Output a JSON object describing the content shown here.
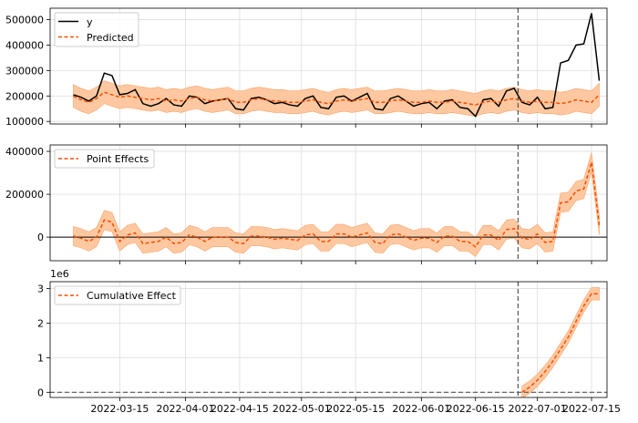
{
  "colors": {
    "observed": "#000000",
    "predicted": "#ff4d00",
    "band": "#ffc8a0",
    "band_edge": "#f6a56a",
    "grid": "#dddddd",
    "intervention": "#555555"
  },
  "x_axis": {
    "tick_labels": [
      "2022-03-15",
      "2022-04-01",
      "2022-04-15",
      "2022-05-01",
      "2022-05-15",
      "2022-06-01",
      "2022-06-15",
      "2022-07-01",
      "2022-07-15"
    ],
    "tick_days": [
      14,
      31,
      45,
      61,
      75,
      92,
      106,
      122,
      136
    ],
    "start_date": "2022-03-01",
    "xlim_days": [
      -4,
      140
    ],
    "intervention_day": 117
  },
  "chart_data": [
    {
      "type": "line",
      "panel": "original",
      "yticks": [
        "100000",
        "200000",
        "300000",
        "400000",
        "500000"
      ],
      "ytick_values": [
        100000,
        200000,
        300000,
        400000,
        500000
      ],
      "ylim": [
        90000,
        545000
      ],
      "legend": [
        "y",
        "Predicted"
      ],
      "legend_position": "top-left",
      "series": [
        {
          "name": "y",
          "x": [
            2,
            4,
            6,
            8,
            10,
            12,
            14,
            16,
            18,
            20,
            22,
            24,
            26,
            28,
            30,
            32,
            34,
            36,
            38,
            40,
            42,
            44,
            46,
            48,
            50,
            52,
            54,
            56,
            58,
            60,
            62,
            64,
            66,
            68,
            70,
            72,
            74,
            76,
            78,
            80,
            82,
            84,
            86,
            88,
            90,
            92,
            94,
            96,
            98,
            100,
            102,
            104,
            106,
            108,
            110,
            112,
            114,
            116,
            118,
            120,
            122,
            124,
            126,
            128,
            130,
            132,
            134,
            136,
            138
          ],
          "values": [
            205000,
            195000,
            180000,
            200000,
            290000,
            280000,
            205000,
            210000,
            225000,
            170000,
            160000,
            170000,
            190000,
            165000,
            160000,
            200000,
            195000,
            170000,
            180000,
            185000,
            190000,
            150000,
            145000,
            190000,
            195000,
            185000,
            170000,
            175000,
            165000,
            160000,
            190000,
            200000,
            155000,
            150000,
            195000,
            200000,
            180000,
            195000,
            210000,
            150000,
            145000,
            190000,
            200000,
            180000,
            160000,
            170000,
            175000,
            150000,
            180000,
            185000,
            155000,
            150000,
            120000,
            185000,
            190000,
            160000,
            220000,
            230000,
            175000,
            165000,
            195000,
            150000,
            155000,
            330000,
            340000,
            400000,
            405000,
            525000,
            260000
          ]
        },
        {
          "name": "Predicted",
          "x": [
            2,
            4,
            6,
            8,
            10,
            12,
            14,
            16,
            18,
            20,
            22,
            24,
            26,
            28,
            30,
            32,
            34,
            36,
            38,
            40,
            42,
            44,
            46,
            48,
            50,
            52,
            54,
            56,
            58,
            60,
            62,
            64,
            66,
            68,
            70,
            72,
            74,
            76,
            78,
            80,
            82,
            84,
            86,
            88,
            90,
            92,
            94,
            96,
            98,
            100,
            102,
            104,
            106,
            108,
            110,
            112,
            114,
            116,
            118,
            120,
            122,
            124,
            126,
            128,
            130,
            132,
            134,
            136,
            138
          ],
          "values": [
            200000,
            185000,
            175000,
            190000,
            215000,
            205000,
            195000,
            200000,
            195000,
            190000,
            185000,
            190000,
            180000,
            185000,
            180000,
            190000,
            195000,
            185000,
            180000,
            185000,
            190000,
            175000,
            175000,
            185000,
            190000,
            185000,
            180000,
            180000,
            175000,
            175000,
            180000,
            185000,
            175000,
            170000,
            180000,
            185000,
            180000,
            185000,
            190000,
            175000,
            175000,
            180000,
            185000,
            180000,
            175000,
            175000,
            180000,
            175000,
            175000,
            180000,
            175000,
            170000,
            165000,
            175000,
            180000,
            175000,
            185000,
            190000,
            180000,
            175000,
            180000,
            175000,
            175000,
            170000,
            175000,
            185000,
            180000,
            175000,
            205000
          ],
          "band_halfwidth": 45000
        }
      ]
    },
    {
      "type": "line",
      "panel": "pointwise",
      "yticks": [
        "0",
        "200000",
        "400000"
      ],
      "ytick_values": [
        0,
        200000,
        400000
      ],
      "ylim": [
        -110000,
        430000
      ],
      "zero_line": 0,
      "legend": [
        "Point Effects"
      ],
      "legend_position": "top-left",
      "series": [
        {
          "name": "Point Effects",
          "x": [
            2,
            4,
            6,
            8,
            10,
            12,
            14,
            16,
            18,
            20,
            22,
            24,
            26,
            28,
            30,
            32,
            34,
            36,
            38,
            40,
            42,
            44,
            46,
            48,
            50,
            52,
            54,
            56,
            58,
            60,
            62,
            64,
            66,
            68,
            70,
            72,
            74,
            76,
            78,
            80,
            82,
            84,
            86,
            88,
            90,
            92,
            94,
            96,
            98,
            100,
            102,
            104,
            106,
            108,
            110,
            112,
            114,
            116,
            118,
            120,
            122,
            124,
            126,
            128,
            130,
            132,
            134,
            136,
            138
          ],
          "values": [
            5000,
            -5000,
            -20000,
            0,
            80000,
            70000,
            -20000,
            10000,
            20000,
            -30000,
            -25000,
            -20000,
            0,
            -30000,
            -25000,
            10000,
            0,
            -20000,
            0,
            0,
            0,
            -25000,
            -30000,
            5000,
            5000,
            0,
            -10000,
            -5000,
            -10000,
            -15000,
            10000,
            15000,
            -20000,
            -20000,
            15000,
            15000,
            0,
            10000,
            20000,
            -25000,
            -30000,
            10000,
            15000,
            0,
            -15000,
            -5000,
            -5000,
            -25000,
            5000,
            5000,
            -20000,
            -20000,
            -45000,
            10000,
            10000,
            -15000,
            35000,
            40000,
            -5000,
            -10000,
            15000,
            -25000,
            -20000,
            160000,
            165000,
            215000,
            225000,
            350000,
            55000
          ],
          "band_halfwidth": 45000
        }
      ]
    },
    {
      "type": "line",
      "panel": "cumulative",
      "yticks": [
        "0",
        "1",
        "2",
        "3"
      ],
      "ytick_values": [
        0,
        1,
        2,
        3
      ],
      "ylim": [
        -0.15,
        3.2
      ],
      "scale_label": "1e6",
      "baseline": 0,
      "legend": [
        "Cumulative Effect"
      ],
      "legend_position": "top-left",
      "series": [
        {
          "name": "Cumulative Effect",
          "x": [
            118,
            120,
            122,
            124,
            126,
            128,
            130,
            132,
            134,
            136,
            138
          ],
          "values": [
            0,
            0.15,
            0.35,
            0.6,
            0.9,
            1.25,
            1.6,
            2.05,
            2.5,
            2.85,
            2.85
          ],
          "band_halfwidth": 0.18
        }
      ]
    }
  ]
}
